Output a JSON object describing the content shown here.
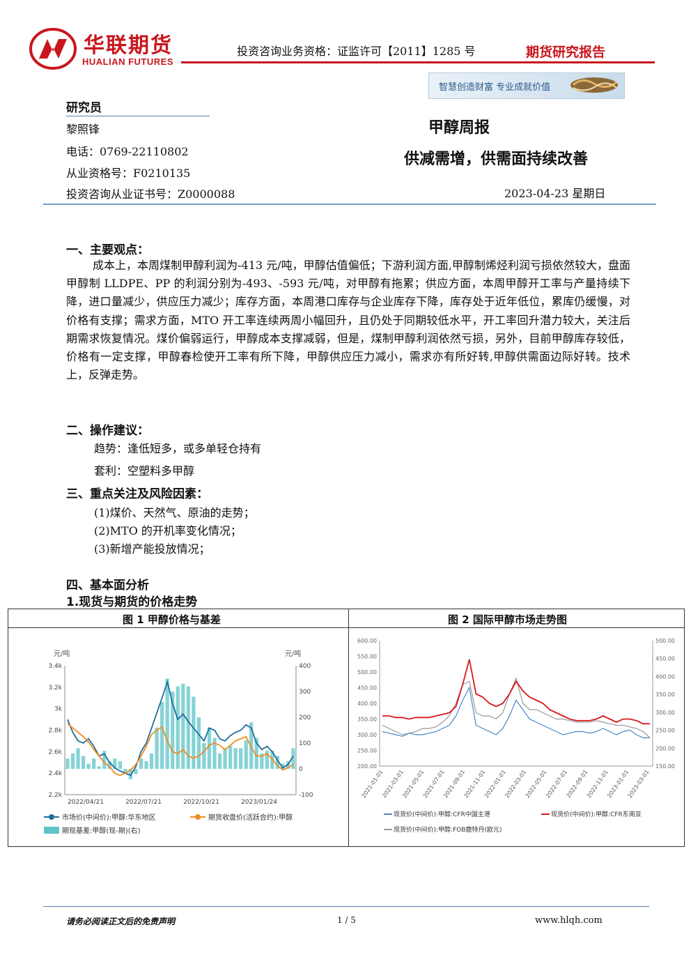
{
  "header": {
    "logo_cn": "华联期货",
    "logo_en": "HUALIAN FUTURES",
    "qualification": "投资咨询业务资格：证监许可【2011】1285 号",
    "report_type": "期货研究报告",
    "slogan": "智慧创造财富  专业成就价值",
    "brand_color": "#c8161d"
  },
  "researcher": {
    "title": "研究员",
    "name": "黎照锋",
    "phone": "电话：0769-22110802",
    "license": "从业资格号：F0210135",
    "advisor_license": "投资咨询从业证书号：Z0000088"
  },
  "report": {
    "title": "甲醇周报",
    "subtitle": "供减需增，供需面持续改善",
    "date": "2023-04-23 星期日"
  },
  "sections": {
    "s1_title": "一、主要观点：",
    "s1_body": "成本上，本周煤制甲醇利润为-413 元/吨，甲醇估值偏低；下游利润方面,甲醇制烯烃利润亏损依然较大，盘面甲醇制 LLDPE、PP 的利润分别为-493、-593 元/吨，对甲醇有拖累；供应方面，本周甲醇开工率与产量持续下降，进口量减少，供应压力减少；库存方面，本周港口库存与企业库存下降，库存处于近年低位，累库仍缓慢，对价格有支撑；需求方面，MTO 开工率连续两周小幅回升，且仍处于同期较低水平，开工率回升潜力较大，关注后期需求恢复情况。煤价偏弱运行，甲醇成本支撑减弱，但是，煤制甲醇利润依然亏损，另外，目前甲醇库存较低，价格有一定支撑，甲醇春检使开工率有所下降，甲醇供应压力减小，需求亦有所好转,甲醇供需面边际好转。技术上，反弹走势。",
    "s2_title": "二、操作建议：",
    "s2_trend": "趋势：逢低短多，或多单轻仓持有",
    "s2_arb": "套利：空塑料多甲醇",
    "s3_title": "三、重点关注及风险因素：",
    "s3_items": [
      "(1)煤价、天然气、原油的走势；",
      "(2)MTO 的开机率变化情况；",
      "(3)新增产能投放情况；"
    ],
    "s4_title": "四、基本面分析",
    "s4_sub": "1.现货与期货的价格走势"
  },
  "figures": {
    "fig1_title": "图 1  甲醇价格与基差",
    "fig2_title": "图 2  国际甲醇市场走势图"
  },
  "chart_data": [
    {
      "type": "line",
      "title": "图 1  甲醇价格与基差",
      "left_unit": "元/吨",
      "right_unit": "元/吨",
      "left_ticks": [
        "3.4k",
        "3.2k",
        "3k",
        "2.8k",
        "2.6k",
        "2.4k",
        "2.2k"
      ],
      "right_ticks": [
        "400",
        "300",
        "200",
        "100",
        "0",
        "-100"
      ],
      "x_ticks": [
        "2022/04/21",
        "2022/07/21",
        "2022/10/21",
        "2023/01/24"
      ],
      "ylim_left": [
        2200,
        3400
      ],
      "ylim_right": [
        -100,
        400
      ],
      "series": [
        {
          "name": "市场价(中间价):甲醇:华东地区",
          "color": "#1f6e9c",
          "values": [
            2900,
            2780,
            2700,
            2680,
            2720,
            2650,
            2560,
            2580,
            2500,
            2450,
            2420,
            2400,
            2380,
            2460,
            2600,
            2680,
            2820,
            2960,
            3100,
            3250,
            3050,
            2900,
            2950,
            2880,
            2820,
            2760,
            2700,
            2820,
            2800,
            2720,
            2700,
            2750,
            2780,
            2800,
            2850,
            2820,
            2680,
            2620,
            2650,
            2600,
            2520,
            2450,
            2480,
            2560
          ]
        },
        {
          "name": "期货收盘价(活跃合约):甲醇",
          "color": "#f08c1e",
          "values": [
            2860,
            2820,
            2780,
            2740,
            2690,
            2620,
            2560,
            2500,
            2460,
            2400,
            2380,
            2400,
            2430,
            2480,
            2560,
            2650,
            2760,
            2800,
            2830,
            2700,
            2600,
            2580,
            2620,
            2560,
            2540,
            2560,
            2600,
            2660,
            2680,
            2660,
            2620,
            2660,
            2700,
            2720,
            2740,
            2640,
            2560,
            2560,
            2580,
            2530,
            2470,
            2430,
            2450,
            2480
          ]
        },
        {
          "name": "期现基差:甲醇(现-期)(右)",
          "color": "#5fc4c8",
          "values": [
            40,
            60,
            80,
            50,
            20,
            40,
            10,
            70,
            30,
            40,
            30,
            -20,
            -40,
            -20,
            40,
            30,
            60,
            160,
            260,
            350,
            300,
            320,
            330,
            320,
            280,
            200,
            100,
            160,
            120,
            60,
            80,
            90,
            80,
            80,
            110,
            180,
            120,
            60,
            70,
            70,
            50,
            20,
            30,
            80
          ]
        }
      ]
    },
    {
      "type": "line",
      "title": "图 2  国际甲醇市场走势图",
      "left_ticks": [
        "600.00",
        "550.00",
        "500.00",
        "450.00",
        "400.00",
        "350.00",
        "300.00",
        "250.00",
        "200.00"
      ],
      "right_ticks": [
        "500.00",
        "450.00",
        "400.00",
        "350.00",
        "300.00",
        "250.00",
        "200.00",
        "150.00"
      ],
      "x_ticks": [
        "2021-01-01",
        "2021-03-01",
        "2021-05-01",
        "2021-07-01",
        "2021-09-01",
        "2021-11-01",
        "2022-01-01",
        "2022-03-01",
        "2022-05-01",
        "2022-07-01",
        "2022-09-01",
        "2022-11-01",
        "2023-01-01",
        "2023-03-01"
      ],
      "ylim_left": [
        200,
        600
      ],
      "ylim_right": [
        150,
        500
      ],
      "series": [
        {
          "name": "现货价(中间价):甲醇:CFR中国主港",
          "color": "#4a86c5",
          "values": [
            310,
            305,
            300,
            295,
            305,
            300,
            300,
            305,
            310,
            320,
            330,
            360,
            410,
            450,
            330,
            320,
            310,
            300,
            320,
            360,
            410,
            380,
            350,
            340,
            330,
            320,
            310,
            300,
            305,
            310,
            310,
            305,
            310,
            320,
            310,
            300,
            310,
            315,
            300,
            290,
            290
          ]
        },
        {
          "name": "现货价(中间价):甲醇:CFR东南亚",
          "color": "#d7191c",
          "values": [
            360,
            360,
            355,
            355,
            350,
            355,
            355,
            355,
            360,
            365,
            370,
            390,
            460,
            540,
            430,
            420,
            400,
            390,
            400,
            430,
            470,
            440,
            420,
            410,
            400,
            380,
            370,
            360,
            350,
            345,
            345,
            345,
            350,
            360,
            350,
            340,
            350,
            350,
            345,
            335,
            335
          ]
        },
        {
          "name": "现货价(中间价):甲醇:FOB鹿特丹(欧元)",
          "color": "#9a9a9a",
          "values": [
            330,
            320,
            310,
            300,
            305,
            310,
            320,
            320,
            325,
            340,
            360,
            400,
            460,
            470,
            370,
            360,
            360,
            350,
            370,
            430,
            480,
            400,
            380,
            380,
            370,
            360,
            350,
            350,
            345,
            340,
            340,
            340,
            345,
            340,
            335,
            330,
            330,
            325,
            320,
            310,
            290
          ]
        }
      ]
    }
  ],
  "footer": {
    "disclaimer": "请务必阅读正文后的免责声明",
    "page": "1 / 5",
    "url": "www.hlqh.com"
  }
}
